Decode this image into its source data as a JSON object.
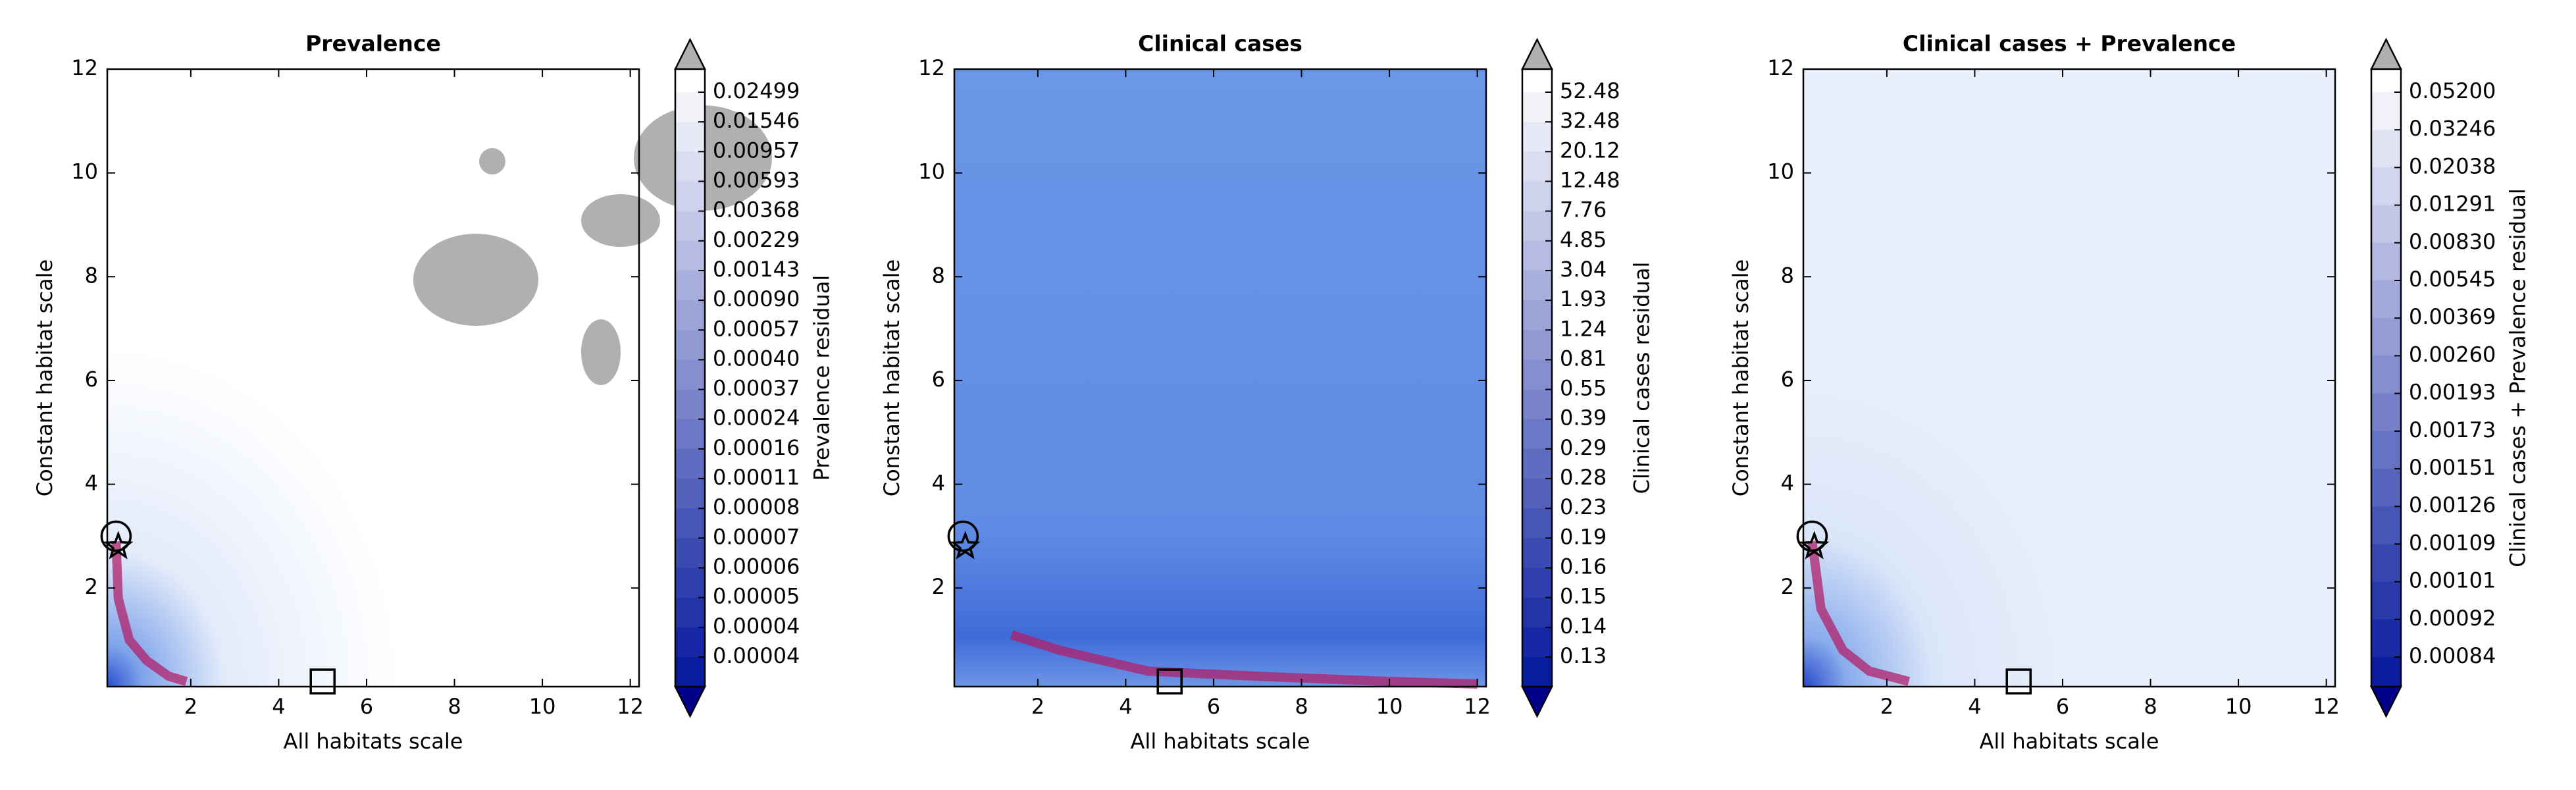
{
  "chart_data": [
    {
      "type": "contour",
      "title": "Prevalence",
      "xlabel": "All habitats scale",
      "ylabel": "Constant habitat scale",
      "xlim": [
        0.1,
        12.2
      ],
      "ylim": [
        0.1,
        12
      ],
      "xticks": [
        2,
        4,
        6,
        8,
        10,
        12
      ],
      "yticks": [
        2,
        4,
        6,
        8,
        10,
        12
      ],
      "colorbar_label": "Prevalence residual",
      "colorbar_labels": [
        "0.02499",
        "0.01546",
        "0.00957",
        "0.00593",
        "0.00368",
        "0.00229",
        "0.00143",
        "0.00090",
        "0.00057",
        "0.00040",
        "0.00037",
        "0.00024",
        "0.00016",
        "0.00011",
        "0.00008",
        "0.00007",
        "0.00006",
        "0.00005",
        "0.00004",
        "0.00004"
      ],
      "markers": [
        {
          "shape": "circle",
          "x": 0.3,
          "y": 3.0
        },
        {
          "shape": "star",
          "x": 0.35,
          "y": 2.8
        },
        {
          "shape": "square",
          "x": 5,
          "y": 0.2
        }
      ]
    },
    {
      "type": "contour",
      "title": "Clinical cases",
      "xlabel": "All habitats scale",
      "ylabel": "Constant habitat scale",
      "xlim": [
        0.1,
        12.2
      ],
      "ylim": [
        0.1,
        12
      ],
      "xticks": [
        2,
        4,
        6,
        8,
        10,
        12
      ],
      "yticks": [
        2,
        4,
        6,
        8,
        10,
        12
      ],
      "colorbar_label": "Clinical cases residual",
      "colorbar_labels": [
        "52.48",
        "32.48",
        "20.12",
        "12.48",
        "7.76",
        "4.85",
        "3.04",
        "1.93",
        "1.24",
        "0.81",
        "0.55",
        "0.39",
        "0.29",
        "0.28",
        "0.23",
        "0.19",
        "0.16",
        "0.15",
        "0.14",
        "0.13"
      ],
      "markers": [
        {
          "shape": "circle",
          "x": 0.3,
          "y": 3.0
        },
        {
          "shape": "star",
          "x": 0.35,
          "y": 2.8
        },
        {
          "shape": "square",
          "x": 5,
          "y": 0.2
        }
      ]
    },
    {
      "type": "contour",
      "title": "Clinical cases + Prevalence",
      "xlabel": "All habitats scale",
      "ylabel": "Constant habitat scale",
      "xlim": [
        0.1,
        12.2
      ],
      "ylim": [
        0.1,
        12
      ],
      "xticks": [
        2,
        4,
        6,
        8,
        10,
        12
      ],
      "yticks": [
        2,
        4,
        6,
        8,
        10,
        12
      ],
      "colorbar_label": "Clinical cases + Prevalence residual",
      "colorbar_labels": [
        "0.05200",
        "0.03246",
        "0.02038",
        "0.01291",
        "0.00830",
        "0.00545",
        "0.00369",
        "0.00260",
        "0.00193",
        "0.00173",
        "0.00151",
        "0.00126",
        "0.00109",
        "0.00101",
        "0.00092",
        "0.00084"
      ],
      "markers": [
        {
          "shape": "circle",
          "x": 0.3,
          "y": 3.0
        },
        {
          "shape": "star",
          "x": 0.35,
          "y": 2.8
        },
        {
          "shape": "square",
          "x": 5,
          "y": 0.2
        }
      ]
    }
  ]
}
